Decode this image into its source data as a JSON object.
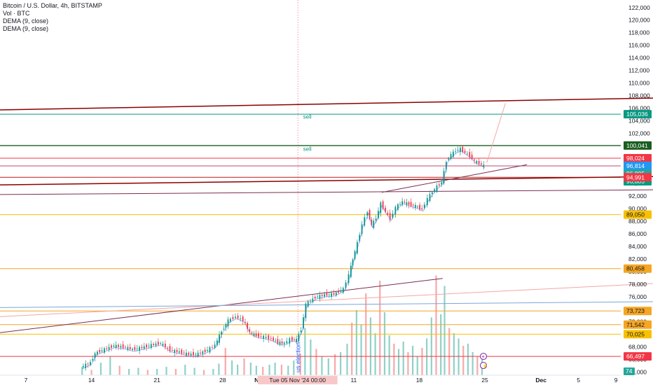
{
  "chart_data": {
    "type": "candlestick",
    "symbol": "Bitcoin / U.S. Dollar, 4h, BITSTAMP",
    "indicators": [
      "Vol · BTC",
      "DEMA (9, close)",
      "DEMA (9, close)"
    ],
    "y_ticks": [
      122000,
      120000,
      118000,
      116000,
      114000,
      112000,
      110000,
      108000,
      106000,
      104000,
      102000,
      100000,
      98000,
      96000,
      94000,
      92000,
      90000,
      88000,
      86000,
      84000,
      82000,
      80000,
      78000,
      76000,
      74000,
      72000,
      70000,
      68000,
      66000,
      64000
    ],
    "y_tick_labels": [
      "122,000",
      "120,000",
      "118,000",
      "116,000",
      "114,000",
      "112,000",
      "110,000",
      "108,000",
      "106,000",
      "104,000",
      "102,000",
      "100,000",
      "98,000",
      "96,000",
      "94,000",
      "92,000",
      "90,000",
      "88,000",
      "86,000",
      "84,000",
      "82,000",
      "80,000",
      "78,000",
      "76,000",
      "74,000",
      "72,000",
      "70,000",
      "68,000",
      "66,000",
      "64,000"
    ],
    "ylim": [
      63500,
      123200
    ],
    "x_ticks": [
      {
        "label": "7",
        "day": 7
      },
      {
        "label": "14",
        "day": 14
      },
      {
        "label": "21",
        "day": 21
      },
      {
        "label": "28",
        "day": 28
      },
      {
        "label": "Nov",
        "day": 32,
        "bold": true
      },
      {
        "label": "11",
        "day": 42
      },
      {
        "label": "18",
        "day": 49
      },
      {
        "label": "25",
        "day": 56
      },
      {
        "label": "Dec",
        "day": 62,
        "bold": true
      },
      {
        "label": "5",
        "day": 66
      },
      {
        "label": "9",
        "day": 70
      }
    ],
    "x_note": "day counts from Oct 1 2024 (Nov 1 = day 32)",
    "crosshair": {
      "day": 36,
      "label": "Tue 05 Nov '24   00:00"
    },
    "event_label": "us election",
    "price_path": [
      [
        13.0,
        64800
      ],
      [
        14.0,
        65500
      ],
      [
        14.5,
        67000
      ],
      [
        15.5,
        67600
      ],
      [
        16.5,
        68200
      ],
      [
        17.5,
        68000
      ],
      [
        18.5,
        67600
      ],
      [
        19.5,
        67900
      ],
      [
        20.5,
        68300
      ],
      [
        21.5,
        68600
      ],
      [
        22.5,
        67500
      ],
      [
        23.5,
        67200
      ],
      [
        24.5,
        66800
      ],
      [
        25.5,
        66900
      ],
      [
        26.5,
        67500
      ],
      [
        27.3,
        68300
      ],
      [
        28.0,
        70500
      ],
      [
        28.7,
        72200
      ],
      [
        29.5,
        72800
      ],
      [
        30.3,
        72300
      ],
      [
        31.0,
        70300
      ],
      [
        31.7,
        69800
      ],
      [
        32.5,
        69600
      ],
      [
        33.3,
        69300
      ],
      [
        34.0,
        68700
      ],
      [
        34.7,
        68600
      ],
      [
        35.3,
        69200
      ],
      [
        36.0,
        69100
      ],
      [
        36.5,
        70800
      ],
      [
        37.0,
        74800
      ],
      [
        38.0,
        75900
      ],
      [
        39.0,
        76300
      ],
      [
        40.0,
        76400
      ],
      [
        41.0,
        77200
      ],
      [
        41.6,
        79500
      ],
      [
        42.0,
        82000
      ],
      [
        42.5,
        84500
      ],
      [
        43.0,
        87500
      ],
      [
        43.6,
        89600
      ],
      [
        44.0,
        87300
      ],
      [
        44.5,
        88500
      ],
      [
        45.0,
        90800
      ],
      [
        45.5,
        89500
      ],
      [
        46.0,
        88400
      ],
      [
        46.6,
        90200
      ],
      [
        47.3,
        91100
      ],
      [
        48.0,
        90700
      ],
      [
        48.7,
        90400
      ],
      [
        49.4,
        89900
      ],
      [
        50.0,
        91600
      ],
      [
        50.5,
        92700
      ],
      [
        51.0,
        93500
      ],
      [
        51.5,
        94200
      ],
      [
        52.0,
        97600
      ],
      [
        52.5,
        98600
      ],
      [
        53.0,
        99200
      ],
      [
        53.5,
        99500
      ],
      [
        54.0,
        98900
      ],
      [
        54.5,
        98400
      ],
      [
        55.0,
        97600
      ],
      [
        55.5,
        97200
      ],
      [
        56.0,
        96805
      ]
    ],
    "volume_bars": [
      [
        13,
        0.08
      ],
      [
        14,
        0.05
      ],
      [
        15,
        0.12
      ],
      [
        16,
        0.18
      ],
      [
        17,
        0.09
      ],
      [
        18,
        0.06
      ],
      [
        19,
        0.07
      ],
      [
        20,
        0.05
      ],
      [
        21,
        0.06
      ],
      [
        22,
        0.08
      ],
      [
        23,
        0.06
      ],
      [
        24,
        0.1
      ],
      [
        25,
        0.07
      ],
      [
        26,
        0.05
      ],
      [
        27,
        0.06
      ],
      [
        27.6,
        0.11
      ],
      [
        28.3,
        0.26
      ],
      [
        29.0,
        0.14
      ],
      [
        29.6,
        0.1
      ],
      [
        30.3,
        0.16
      ],
      [
        31.0,
        0.12
      ],
      [
        31.6,
        0.09
      ],
      [
        32.3,
        0.08
      ],
      [
        33.0,
        0.1
      ],
      [
        33.6,
        0.12
      ],
      [
        34.3,
        0.1
      ],
      [
        35.0,
        0.09
      ],
      [
        35.6,
        0.14
      ],
      [
        36.3,
        0.2
      ],
      [
        36.8,
        0.45
      ],
      [
        37.4,
        0.34
      ],
      [
        38.0,
        0.25
      ],
      [
        38.6,
        0.18
      ],
      [
        39.3,
        0.16
      ],
      [
        40.0,
        0.2
      ],
      [
        40.6,
        0.22
      ],
      [
        41.3,
        0.3
      ],
      [
        41.8,
        0.5
      ],
      [
        42.3,
        0.62
      ],
      [
        42.8,
        0.48
      ],
      [
        43.3,
        0.78
      ],
      [
        43.8,
        0.55
      ],
      [
        44.3,
        0.4
      ],
      [
        44.8,
        0.9
      ],
      [
        45.3,
        0.6
      ],
      [
        45.8,
        0.38
      ],
      [
        46.3,
        0.3
      ],
      [
        46.8,
        0.25
      ],
      [
        47.3,
        0.32
      ],
      [
        47.8,
        0.22
      ],
      [
        48.3,
        0.28
      ],
      [
        48.8,
        0.18
      ],
      [
        49.3,
        0.26
      ],
      [
        49.8,
        0.35
      ],
      [
        50.3,
        0.55
      ],
      [
        50.8,
        0.95
      ],
      [
        51.3,
        0.58
      ],
      [
        51.7,
        0.85
      ],
      [
        52.2,
        0.45
      ],
      [
        52.7,
        0.4
      ],
      [
        53.2,
        0.35
      ],
      [
        53.7,
        0.28
      ],
      [
        54.2,
        0.3
      ],
      [
        54.7,
        0.22
      ],
      [
        55.2,
        0.18
      ],
      [
        55.7,
        0.15
      ]
    ],
    "horizontal_levels": [
      {
        "price": 105036,
        "color": "#089981",
        "label": "105,036"
      },
      {
        "price": 100041,
        "color": "#1b5e20",
        "label": "100,041",
        "thick": true
      },
      {
        "price": 98024,
        "color": "#f23645",
        "label": "98,024"
      },
      {
        "price": 96805,
        "color": "#f23645",
        "label": "96,805"
      },
      {
        "price": 94991,
        "color": "#b71c1c",
        "label": "94,991"
      },
      {
        "price": 89050,
        "color": "#f9c000",
        "label": "89,050"
      },
      {
        "price": 80458,
        "color": "#f5a623",
        "label": "80,458"
      },
      {
        "price": 73723,
        "color": "#f5a623",
        "label": "73,723"
      },
      {
        "price": 71542,
        "color": "#f5a623",
        "label": "71,542"
      },
      {
        "price": 70025,
        "color": "#f9c000",
        "label": "70,025"
      },
      {
        "price": 66497,
        "color": "#f23645",
        "label": "66,497"
      }
    ],
    "price_badges": [
      {
        "price": 105036,
        "label": "105,036",
        "bg": "#089981"
      },
      {
        "price": 100041,
        "label": "100,041",
        "bg": "#1b5e20"
      },
      {
        "price": 98024,
        "label": "98,024",
        "bg": "#f23645"
      },
      {
        "price": 96814,
        "label": "96,814",
        "bg": "#2196f3"
      },
      {
        "price": 96805,
        "label": "96,805",
        "bg": "#26a69a",
        "offset": 1
      },
      {
        "price": 96805,
        "label": "96,805",
        "bg": "#089981",
        "offset": 2
      },
      {
        "price": 94991,
        "label": "94,991",
        "bg": "#f23645"
      },
      {
        "price": 89050,
        "label": "89,050",
        "bg": "#f9c000",
        "dark": true
      },
      {
        "price": 80458,
        "label": "80,458",
        "bg": "#f5a623",
        "dark": true
      },
      {
        "price": 73723,
        "label": "73,723",
        "bg": "#f5a623",
        "dark": true
      },
      {
        "price": 71542,
        "label": "71,542",
        "bg": "#f5a623",
        "dark": true
      },
      {
        "price": 70025,
        "label": "70,025",
        "bg": "#f9c000",
        "dark": true
      },
      {
        "price": 66497,
        "label": "66,497",
        "bg": "#f23645"
      }
    ],
    "volume_badge": "74",
    "trend_lines": [
      {
        "from": [
          0,
          105600
        ],
        "to": [
          74,
          107600
        ],
        "color": "#8b0000",
        "width": 1.5
      },
      {
        "from": [
          0,
          93700
        ],
        "to": [
          74,
          95100
        ],
        "color": "#8b0000",
        "width": 1.5
      },
      {
        "from": [
          0,
          92200
        ],
        "to": [
          74,
          93000
        ],
        "color": "#7b2d52",
        "width": 1
      },
      {
        "from": [
          45.0,
          92600
        ],
        "to": [
          60.5,
          97000
        ],
        "color": "#7b2d52",
        "width": 1
      },
      {
        "from": [
          0,
          69500
        ],
        "to": [
          51.5,
          78900
        ],
        "color": "#7b2d52",
        "width": 1
      },
      {
        "from": [
          0,
          72500
        ],
        "to": [
          74,
          78100
        ],
        "color": "#f4a6a6",
        "width": 1
      },
      {
        "from": [
          0,
          74200
        ],
        "to": [
          74,
          75200
        ],
        "color": "#7aa7d9",
        "width": 1
      },
      {
        "from": [
          56.2,
          97300
        ],
        "to": [
          58.2,
          106800
        ],
        "color": "#f4a6a6",
        "width": 1
      }
    ],
    "annotations": [
      {
        "text": "sell",
        "day": 36.6,
        "price": 104300,
        "color": "#089981"
      },
      {
        "text": "sell",
        "day": 36.6,
        "price": 99200,
        "color": "#089981"
      }
    ]
  }
}
